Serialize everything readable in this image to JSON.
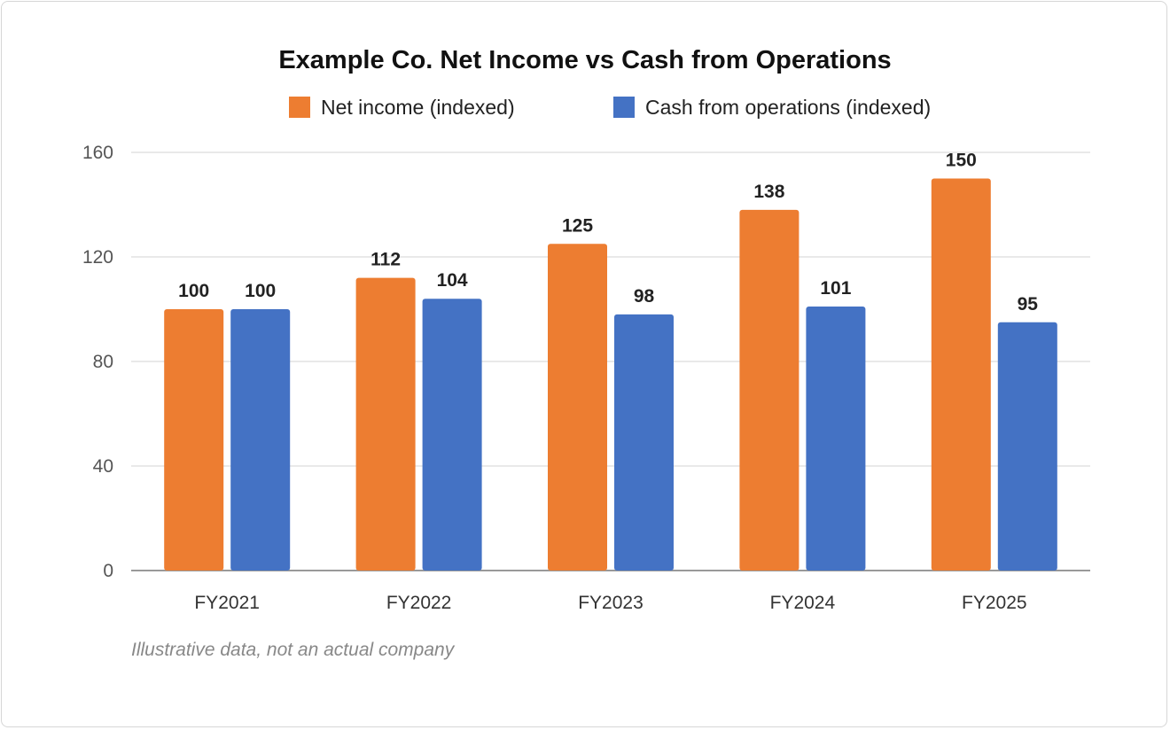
{
  "chart_data": {
    "type": "bar",
    "title": "Example Co. Net Income vs Cash from Operations",
    "xlabel": "",
    "ylabel": "",
    "ylim": [
      0,
      160
    ],
    "yticks": [
      0,
      40,
      80,
      120,
      160
    ],
    "grid": true,
    "legend_position": "top-center",
    "categories": [
      "FY2021",
      "FY2022",
      "FY2023",
      "FY2024",
      "FY2025"
    ],
    "series": [
      {
        "name": "Net income (indexed)",
        "color": "#ED7D31",
        "values": [
          100,
          112,
          125,
          138,
          150
        ]
      },
      {
        "name": "Cash from operations (indexed)",
        "color": "#4472C4",
        "values": [
          100,
          104,
          98,
          101,
          95
        ]
      }
    ],
    "footnote": "Illustrative data, not an actual company"
  }
}
